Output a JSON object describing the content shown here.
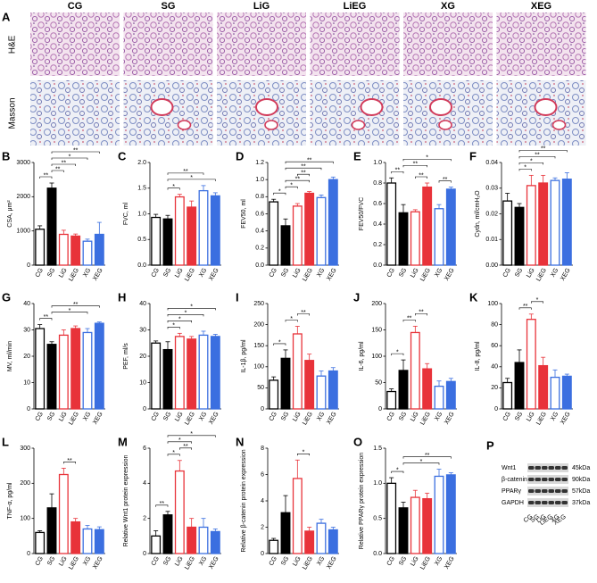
{
  "panel_a": {
    "label": "A",
    "columns": [
      "CG",
      "SG",
      "LiG",
      "LiEG",
      "XG",
      "XEG"
    ],
    "rows": [
      "H&E",
      "Masson"
    ]
  },
  "bar_style": {
    "colors": [
      "#000000",
      "#000000",
      "#e8333a",
      "#e8333a",
      "#3b6fe0",
      "#3b6fe0"
    ],
    "filled": [
      false,
      true,
      false,
      true,
      false,
      true
    ]
  },
  "panel_p": {
    "label": "P",
    "proteins": [
      "Wnt1",
      "β-catenin",
      "PPARγ",
      "GAPDH"
    ],
    "sizes": [
      "45kDa",
      "90kDa",
      "57kDa",
      "37kDa"
    ],
    "lanes": [
      "CG",
      "SG",
      "LiG",
      "LiEG",
      "XG",
      "XEG"
    ]
  },
  "chart_data": [
    {
      "type": "bar",
      "label": "B",
      "y_label": "CSA, μm²",
      "categories": [
        "CG",
        "SG",
        "LiG",
        "LiEG",
        "XG",
        "XEG"
      ],
      "values": [
        1050,
        2250,
        900,
        850,
        700,
        900
      ],
      "errors": [
        100,
        150,
        120,
        60,
        60,
        350
      ],
      "ylim": [
        0,
        3000
      ],
      "yticks": [
        0,
        1000,
        2000,
        3000
      ],
      "significance": [
        {
          "pair": [
            "CG",
            "SG"
          ],
          "label": "**"
        },
        {
          "pair": [
            "SG",
            "LiG"
          ],
          "label": "**"
        },
        {
          "pair": [
            "SG",
            "LiEG"
          ],
          "label": "**"
        },
        {
          "pair": [
            "SG",
            "XG"
          ],
          "label": "*"
        },
        {
          "pair": [
            "SG",
            "XEG"
          ],
          "label": "**"
        }
      ]
    },
    {
      "type": "bar",
      "label": "C",
      "y_label": "FVC, ml",
      "categories": [
        "CG",
        "SG",
        "LiG",
        "LiEG",
        "XG",
        "XEG"
      ],
      "values": [
        0.93,
        0.9,
        1.33,
        1.13,
        1.45,
        1.35
      ],
      "errors": [
        0.06,
        0.07,
        0.05,
        0.12,
        0.1,
        0.06
      ],
      "ylim": [
        0,
        2.0
      ],
      "yticks": [
        {
          "value": 0,
          "label": "0.0"
        },
        0.5,
        {
          "value": 1,
          "label": "1.0"
        },
        1.5,
        {
          "value": 2,
          "label": "2.0"
        }
      ],
      "significance": [
        {
          "pair": [
            "SG",
            "LiG"
          ],
          "label": "*"
        },
        {
          "pair": [
            "SG",
            "XEG"
          ],
          "label": "*"
        },
        {
          "pair": [
            "SG",
            "XG"
          ],
          "label": "**"
        }
      ]
    },
    {
      "type": "bar",
      "label": "D",
      "y_label": "FEV50, ml",
      "categories": [
        "CG",
        "SG",
        "LiG",
        "LiEG",
        "XG",
        "XEG"
      ],
      "values": [
        0.74,
        0.46,
        0.69,
        0.84,
        0.79,
        1.0
      ],
      "errors": [
        0.03,
        0.08,
        0.03,
        0.02,
        0.03,
        0.03
      ],
      "ylim": [
        0,
        1.2
      ],
      "yticks": [
        {
          "value": 0,
          "label": "0.0"
        },
        0.2,
        0.4,
        0.6,
        0.8,
        {
          "value": 1,
          "label": "1.0"
        },
        1.2
      ],
      "significance": [
        {
          "pair": [
            "CG",
            "SG"
          ],
          "label": "*"
        },
        {
          "pair": [
            "SG",
            "LiG"
          ],
          "label": "*"
        },
        {
          "pair": [
            "SG",
            "LiEG"
          ],
          "label": "**"
        },
        {
          "pair": [
            "LiG",
            "LiEG"
          ],
          "label": "**"
        },
        {
          "pair": [
            "SG",
            "XG"
          ],
          "label": "**"
        },
        {
          "pair": [
            "SG",
            "XEG"
          ],
          "label": "**"
        }
      ]
    },
    {
      "type": "bar",
      "label": "E",
      "y_label": "FEV50/FVC",
      "categories": [
        "CG",
        "SG",
        "LiG",
        "LiEG",
        "XG",
        "XEG"
      ],
      "values": [
        0.8,
        0.51,
        0.52,
        0.76,
        0.55,
        0.74
      ],
      "errors": [
        0.05,
        0.08,
        0.02,
        0.04,
        0.04,
        0.02
      ],
      "ylim": [
        0,
        1.0
      ],
      "yticks": [
        {
          "value": 0,
          "label": "0.0"
        },
        0.2,
        0.4,
        0.6,
        0.8,
        {
          "value": 1,
          "label": "1.0"
        }
      ],
      "significance": [
        {
          "pair": [
            "CG",
            "SG"
          ],
          "label": "**"
        },
        {
          "pair": [
            "LiG",
            "LiEG"
          ],
          "label": "**"
        },
        {
          "pair": [
            "XG",
            "XEG"
          ],
          "label": "**"
        },
        {
          "pair": [
            "SG",
            "LiEG"
          ],
          "label": "**"
        },
        {
          "pair": [
            "SG",
            "XEG"
          ],
          "label": "*"
        }
      ]
    },
    {
      "type": "bar",
      "label": "F",
      "y_label": "Cydn, ml/cmH₂O",
      "categories": [
        "CG",
        "SG",
        "LiG",
        "LiEG",
        "XG",
        "XEG"
      ],
      "values": [
        0.025,
        0.0225,
        0.031,
        0.032,
        0.033,
        0.0335
      ],
      "errors": [
        0.003,
        0.0015,
        0.004,
        0.003,
        0.001,
        0.0025
      ],
      "ylim": [
        0,
        0.04
      ],
      "yticks": [
        {
          "value": 0,
          "label": "0.00"
        },
        0.01,
        0.02,
        0.03,
        0.04
      ],
      "significance": [
        {
          "pair": [
            "SG",
            "LiG"
          ],
          "label": "*"
        },
        {
          "pair": [
            "SG",
            "LiEG"
          ],
          "label": "*"
        },
        {
          "pair": [
            "SG",
            "XG"
          ],
          "label": "**"
        },
        {
          "pair": [
            "SG",
            "XEG"
          ],
          "label": "**"
        }
      ]
    },
    {
      "type": "bar",
      "label": "G",
      "y_label": "MV, ml/min",
      "categories": [
        "CG",
        "SG",
        "LiG",
        "LiEG",
        "XG",
        "XEG"
      ],
      "values": [
        30.5,
        24.5,
        28,
        30.5,
        29,
        32.5
      ],
      "errors": [
        1.5,
        1,
        2,
        1,
        1.5,
        0.5
      ],
      "ylim": [
        0,
        40
      ],
      "yticks": [
        0,
        10,
        20,
        30,
        40
      ],
      "significance": [
        {
          "pair": [
            "CG",
            "SG"
          ],
          "label": "**"
        },
        {
          "pair": [
            "SG",
            "XG"
          ],
          "label": "*"
        },
        {
          "pair": [
            "SG",
            "XEG"
          ],
          "label": "**"
        }
      ]
    },
    {
      "type": "bar",
      "label": "H",
      "y_label": "PEF, ml/s",
      "categories": [
        "CG",
        "SG",
        "LiG",
        "LiEG",
        "XG",
        "XEG"
      ],
      "values": [
        25,
        22.5,
        27.5,
        26.5,
        28,
        27.5
      ],
      "errors": [
        0.8,
        3,
        1.2,
        1,
        1.5,
        0.8
      ],
      "ylim": [
        0,
        40
      ],
      "yticks": [
        0,
        10,
        20,
        30,
        40
      ],
      "significance": [
        {
          "pair": [
            "SG",
            "LiG"
          ],
          "label": "*"
        },
        {
          "pair": [
            "SG",
            "LiEG"
          ],
          "label": "*"
        },
        {
          "pair": [
            "SG",
            "XG"
          ],
          "label": "*"
        },
        {
          "pair": [
            "SG",
            "XEG"
          ],
          "label": "*"
        }
      ]
    },
    {
      "type": "bar",
      "label": "I",
      "y_label": "IL-1β, pg/ml",
      "categories": [
        "CG",
        "SG",
        "LiG",
        "LiEG",
        "XG",
        "XEG"
      ],
      "values": [
        68,
        120,
        178,
        115,
        78,
        90
      ],
      "errors": [
        8,
        20,
        18,
        15,
        12,
        8
      ],
      "ylim": [
        0,
        250
      ],
      "yticks": [
        0,
        50,
        100,
        150,
        200,
        250
      ],
      "significance": [
        {
          "pair": [
            "CG",
            "SG"
          ],
          "label": "*"
        },
        {
          "pair": [
            "SG",
            "LiG"
          ],
          "label": "*"
        },
        {
          "pair": [
            "LiG",
            "LiEG"
          ],
          "label": "**"
        }
      ]
    },
    {
      "type": "bar",
      "label": "J",
      "y_label": "IL-6, pg/ml",
      "categories": [
        "CG",
        "SG",
        "LiG",
        "LiEG",
        "XG",
        "XEG"
      ],
      "values": [
        33,
        73,
        145,
        76,
        43,
        52
      ],
      "errors": [
        5,
        20,
        12,
        10,
        10,
        6
      ],
      "ylim": [
        0,
        200
      ],
      "yticks": [
        0,
        50,
        100,
        150,
        200
      ],
      "significance": [
        {
          "pair": [
            "CG",
            "SG"
          ],
          "label": "*"
        },
        {
          "pair": [
            "SG",
            "LiG"
          ],
          "label": "**"
        },
        {
          "pair": [
            "LiG",
            "LiEG"
          ],
          "label": "**"
        }
      ]
    },
    {
      "type": "bar",
      "label": "K",
      "y_label": "IL-8, pg/ml",
      "categories": [
        "CG",
        "SG",
        "LiG",
        "LiEG",
        "XG",
        "XEG"
      ],
      "values": [
        25,
        44,
        85,
        41,
        30,
        31
      ],
      "errors": [
        4,
        12,
        5,
        8,
        7,
        2
      ],
      "ylim": [
        0,
        100
      ],
      "yticks": [
        0,
        20,
        40,
        60,
        80,
        100
      ],
      "significance": [
        {
          "pair": [
            "SG",
            "LiG"
          ],
          "label": "**"
        },
        {
          "pair": [
            "LiG",
            "LiEG"
          ],
          "label": "*"
        }
      ]
    },
    {
      "type": "bar",
      "label": "L",
      "y_label": "TNF-α, pg/ml",
      "categories": [
        "CG",
        "SG",
        "LiG",
        "LiEG",
        "XG",
        "XEG"
      ],
      "values": [
        60,
        130,
        225,
        90,
        70,
        68
      ],
      "errors": [
        5,
        40,
        18,
        10,
        10,
        8
      ],
      "ylim": [
        0,
        300
      ],
      "yticks": [
        0,
        100,
        200,
        300
      ],
      "significance": [
        {
          "pair": [
            "LiG",
            "LiEG"
          ],
          "label": "**"
        }
      ]
    },
    {
      "type": "bar",
      "label": "M",
      "y_label": "Relative Wnt1 protein expression",
      "categories": [
        "CG",
        "SG",
        "LiG",
        "LiEG",
        "XG",
        "XEG"
      ],
      "values": [
        1,
        2.2,
        4.7,
        1.5,
        1.5,
        1.25
      ],
      "errors": [
        0.3,
        0.2,
        0.6,
        0.5,
        0.5,
        0.15
      ],
      "ylim": [
        0,
        6
      ],
      "yticks": [
        0,
        2,
        4,
        6
      ],
      "significance": [
        {
          "pair": [
            "CG",
            "SG"
          ],
          "label": "**"
        },
        {
          "pair": [
            "SG",
            "LiG"
          ],
          "label": "*"
        },
        {
          "pair": [
            "LiG",
            "LiEG"
          ],
          "label": "**"
        },
        {
          "pair": [
            "SG",
            "LiEG"
          ],
          "label": "*"
        },
        {
          "pair": [
            "SG",
            "XEG"
          ],
          "label": "*"
        }
      ]
    },
    {
      "type": "bar",
      "label": "N",
      "y_label": "Relative β-catenin protein expression",
      "categories": [
        "CG",
        "SG",
        "LiG",
        "LiEG",
        "XG",
        "XEG"
      ],
      "values": [
        1,
        3.1,
        5.7,
        1.7,
        2.3,
        1.8
      ],
      "errors": [
        0.15,
        1.3,
        1.4,
        0.3,
        0.3,
        0.2
      ],
      "ylim": [
        0,
        8
      ],
      "yticks": [
        0,
        2,
        4,
        6,
        8
      ],
      "significance": [
        {
          "pair": [
            "LiG",
            "LiEG"
          ],
          "label": "*"
        }
      ]
    },
    {
      "type": "bar",
      "label": "O",
      "y_label": "Relative PPARγ protein expression",
      "categories": [
        "CG",
        "SG",
        "LiG",
        "LiEG",
        "XG",
        "XEG"
      ],
      "values": [
        1.0,
        0.65,
        0.8,
        0.78,
        1.1,
        1.12
      ],
      "errors": [
        0.08,
        0.08,
        0.1,
        0.08,
        0.1,
        0.03
      ],
      "ylim": [
        0,
        1.5
      ],
      "yticks": [
        {
          "value": 0,
          "label": "0.0"
        },
        0.5,
        {
          "value": 1,
          "label": "1.0"
        },
        1.5
      ],
      "significance": [
        {
          "pair": [
            "CG",
            "SG"
          ],
          "label": "*"
        },
        {
          "pair": [
            "SG",
            "XG"
          ],
          "label": "*"
        },
        {
          "pair": [
            "SG",
            "XEG"
          ],
          "label": "**"
        }
      ]
    }
  ]
}
